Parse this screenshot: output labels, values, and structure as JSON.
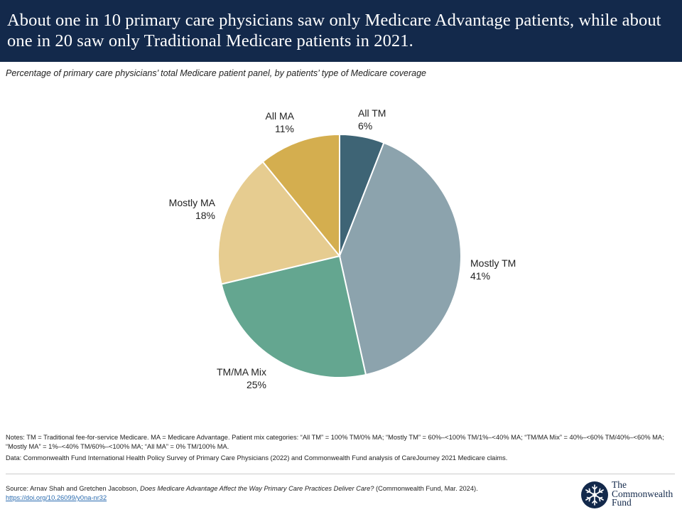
{
  "header": {
    "title": "About one in 10 primary care physicians saw only Medicare Advantage patients, while about one in 20 saw only Traditional Medicare patients in 2021."
  },
  "subtitle": "Percentage of primary care physicians’ total Medicare patient panel, by patients’ type of Medicare coverage",
  "chart_data": {
    "type": "pie",
    "title": "Percentage of primary care physicians’ total Medicare patient panel, by patients’ type of Medicare coverage",
    "categories": [
      "All TM",
      "Mostly TM",
      "TM/MA Mix",
      "Mostly MA",
      "All MA"
    ],
    "values": [
      6,
      41,
      25,
      18,
      11
    ],
    "value_labels": [
      "6%",
      "41%",
      "25%",
      "18%",
      "11%"
    ],
    "colors": [
      "#3e6475",
      "#8ca3ad",
      "#64a690",
      "#e6cc90",
      "#d4ae4f"
    ],
    "start": "12 o'clock, clockwise"
  },
  "notes": {
    "notes_text": "Notes: TM = Traditional fee-for-service Medicare. MA = Medicare Advantage. Patient mix categories: “All TM” = 100% TM/0% MA; “Mostly TM” = 60%–<100% TM/1%–<40% MA; “TM/MA Mix” = 40%–<60% TM/40%–<60% MA; “Mostly MA” = 1%–<40% TM/60%–<100% MA; “All MA” = 0% TM/100% MA.",
    "data_text": "Data: Commonwealth Fund International Health Policy Survey of Primary Care Physicians (2022) and Commonwealth Fund analysis of CareJourney 2021 Medicare claims."
  },
  "source": {
    "prefix": "Source: Arnav Shah and Gretchen Jacobson, ",
    "title": "Does Medicare Advantage Affect the Way Primary Care Practices Deliver Care?",
    "suffix": " (Commonwealth Fund, Mar. 2024).",
    "link": "https://doi.org/10.26099/y0na-nr32"
  },
  "logo": {
    "line1": "The",
    "line2": "Commonwealth",
    "line3": "Fund"
  }
}
